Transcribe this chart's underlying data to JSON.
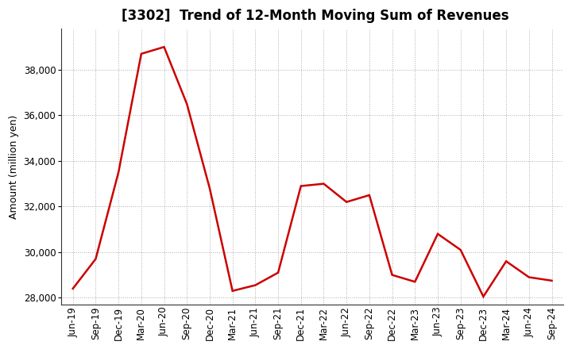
{
  "title": "[3302]  Trend of 12-Month Moving Sum of Revenues",
  "ylabel": "Amount (million yen)",
  "line_color": "#cc0000",
  "background_color": "#ffffff",
  "plot_background_color": "#ffffff",
  "grid_color": "#999999",
  "labels": [
    "Jun-19",
    "Sep-19",
    "Dec-19",
    "Mar-20",
    "Jun-20",
    "Sep-20",
    "Dec-20",
    "Mar-21",
    "Jun-21",
    "Sep-21",
    "Dec-21",
    "Mar-22",
    "Jun-22",
    "Sep-22",
    "Dec-22",
    "Mar-23",
    "Jun-23",
    "Sep-23",
    "Dec-23",
    "Mar-24",
    "Jun-24",
    "Sep-24"
  ],
  "values": [
    28400,
    29700,
    33500,
    38700,
    39000,
    36500,
    32800,
    28300,
    28550,
    29100,
    32900,
    33000,
    32200,
    32500,
    29000,
    28700,
    30800,
    30100,
    28050,
    29600,
    28900,
    28750
  ],
  "ylim": [
    27700,
    39800
  ],
  "yticks": [
    28000,
    30000,
    32000,
    34000,
    36000,
    38000
  ],
  "title_fontsize": 12,
  "label_fontsize": 8.5,
  "ylabel_fontsize": 9,
  "figsize": [
    7.2,
    4.4
  ],
  "dpi": 100
}
